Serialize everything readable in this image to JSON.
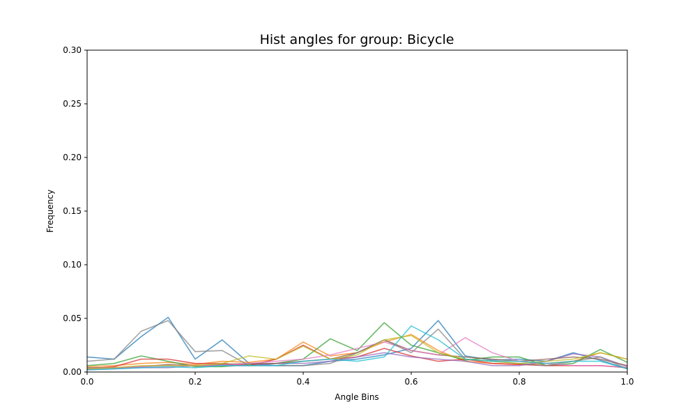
{
  "chart_data": {
    "type": "line",
    "title": "Hist angles for group: Bicycle",
    "xlabel": "Angle Bins",
    "ylabel": "Frequency",
    "xlim": [
      0.0,
      1.0
    ],
    "ylim": [
      0.0,
      0.3
    ],
    "grid": false,
    "xticks": [
      {
        "value": 0.0,
        "label": "0.0"
      },
      {
        "value": 0.2,
        "label": "0.2"
      },
      {
        "value": 0.4,
        "label": "0.4"
      },
      {
        "value": 0.6,
        "label": "0.6"
      },
      {
        "value": 0.8,
        "label": "0.8"
      },
      {
        "value": 1.0,
        "label": "1.0"
      }
    ],
    "yticks": [
      {
        "value": 0.0,
        "label": "0.00"
      },
      {
        "value": 0.05,
        "label": "0.05"
      },
      {
        "value": 0.1,
        "label": "0.10"
      },
      {
        "value": 0.15,
        "label": "0.15"
      },
      {
        "value": 0.2,
        "label": "0.20"
      },
      {
        "value": 0.25,
        "label": "0.25"
      },
      {
        "value": 0.3,
        "label": "0.30"
      }
    ],
    "x": [
      0.0,
      0.05,
      0.1,
      0.15,
      0.2,
      0.25,
      0.3,
      0.35,
      0.4,
      0.45,
      0.5,
      0.55,
      0.6,
      0.65,
      0.7,
      0.75,
      0.8,
      0.85,
      0.9,
      0.95,
      1.0
    ],
    "series": [
      {
        "color": "#1f77b4",
        "values": [
          0.014,
          0.012,
          0.033,
          0.051,
          0.012,
          0.03,
          0.008,
          0.006,
          0.006,
          0.01,
          0.012,
          0.016,
          0.022,
          0.048,
          0.015,
          0.011,
          0.012,
          0.01,
          0.018,
          0.011,
          0.003
        ]
      },
      {
        "color": "#ff7f0e",
        "values": [
          0.005,
          0.006,
          0.008,
          0.009,
          0.007,
          0.01,
          0.009,
          0.012,
          0.028,
          0.015,
          0.018,
          0.028,
          0.035,
          0.02,
          0.01,
          0.008,
          0.007,
          0.008,
          0.01,
          0.018,
          0.012
        ]
      },
      {
        "color": "#2ca02c",
        "values": [
          0.006,
          0.008,
          0.015,
          0.01,
          0.005,
          0.005,
          0.007,
          0.008,
          0.012,
          0.031,
          0.02,
          0.046,
          0.025,
          0.018,
          0.011,
          0.014,
          0.014,
          0.006,
          0.008,
          0.021,
          0.009
        ]
      },
      {
        "color": "#d62728",
        "values": [
          0.003,
          0.005,
          0.012,
          0.012,
          0.008,
          0.008,
          0.006,
          0.012,
          0.025,
          0.012,
          0.014,
          0.022,
          0.015,
          0.01,
          0.012,
          0.008,
          0.007,
          0.006,
          0.006,
          0.006,
          0.004
        ]
      },
      {
        "color": "#9467bd",
        "values": [
          0.002,
          0.003,
          0.004,
          0.004,
          0.006,
          0.006,
          0.006,
          0.008,
          0.008,
          0.01,
          0.014,
          0.018,
          0.014,
          0.012,
          0.01,
          0.006,
          0.006,
          0.01,
          0.017,
          0.014,
          0.005
        ]
      },
      {
        "color": "#8c564b",
        "values": [
          0.004,
          0.004,
          0.005,
          0.007,
          0.006,
          0.007,
          0.008,
          0.008,
          0.01,
          0.012,
          0.018,
          0.03,
          0.02,
          0.016,
          0.014,
          0.012,
          0.01,
          0.012,
          0.014,
          0.012,
          0.006
        ]
      },
      {
        "color": "#e377c2",
        "values": [
          0.003,
          0.004,
          0.005,
          0.006,
          0.006,
          0.006,
          0.008,
          0.01,
          0.012,
          0.016,
          0.022,
          0.028,
          0.02,
          0.016,
          0.032,
          0.018,
          0.01,
          0.008,
          0.006,
          0.006,
          0.004
        ]
      },
      {
        "color": "#7f7f7f",
        "values": [
          0.01,
          0.012,
          0.038,
          0.048,
          0.019,
          0.02,
          0.006,
          0.006,
          0.006,
          0.008,
          0.018,
          0.03,
          0.018,
          0.04,
          0.012,
          0.01,
          0.008,
          0.006,
          0.01,
          0.014,
          0.003
        ]
      },
      {
        "color": "#bcbd22",
        "values": [
          0.003,
          0.004,
          0.006,
          0.006,
          0.006,
          0.008,
          0.015,
          0.012,
          0.024,
          0.012,
          0.016,
          0.03,
          0.034,
          0.018,
          0.012,
          0.01,
          0.008,
          0.01,
          0.012,
          0.018,
          0.012
        ]
      },
      {
        "color": "#17becf",
        "values": [
          0.002,
          0.003,
          0.004,
          0.005,
          0.004,
          0.006,
          0.006,
          0.006,
          0.01,
          0.012,
          0.01,
          0.014,
          0.043,
          0.03,
          0.012,
          0.01,
          0.01,
          0.008,
          0.01,
          0.01,
          0.003
        ]
      }
    ]
  }
}
